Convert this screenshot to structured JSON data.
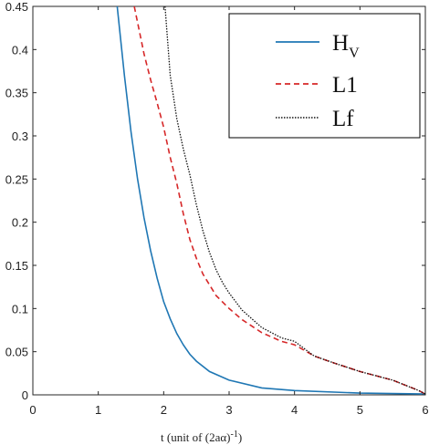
{
  "chart_data": {
    "type": "line",
    "title": "",
    "xlabel": "t (unit of (2aα)",
    "xlabel_sup": "-1",
    "xlabel_close": ")",
    "ylabel": "",
    "xlim": [
      0,
      6
    ],
    "ylim": [
      0,
      0.45
    ],
    "xticks": [
      "0",
      "1",
      "2",
      "3",
      "4",
      "5",
      "6"
    ],
    "yticks": [
      "0",
      "0.05",
      "0.1",
      "0.15",
      "0.2",
      "0.25",
      "0.3",
      "0.35",
      "0.4",
      "0.45"
    ],
    "grid": false,
    "legend_position": "top-right",
    "series": [
      {
        "name": "H",
        "name_sub": "V",
        "color": "#1f77b4",
        "style": "solid",
        "x": [
          1.29,
          1.4,
          1.5,
          1.6,
          1.7,
          1.8,
          1.9,
          2.0,
          2.1,
          2.2,
          2.3,
          2.4,
          2.5,
          2.7,
          3.0,
          3.5,
          4.0,
          5.0,
          6.0
        ],
        "y": [
          0.45,
          0.37,
          0.305,
          0.25,
          0.205,
          0.167,
          0.135,
          0.108,
          0.088,
          0.071,
          0.058,
          0.047,
          0.039,
          0.027,
          0.017,
          0.008,
          0.005,
          0.002,
          0.001
        ]
      },
      {
        "name": "L1",
        "color": "#d62728",
        "style": "dashed",
        "x": [
          1.55,
          1.7,
          1.8,
          1.9,
          2.0,
          2.1,
          2.2,
          2.3,
          2.4,
          2.5,
          2.6,
          2.8,
          3.0,
          3.2,
          3.5,
          3.8,
          4.0,
          4.3,
          4.6,
          5.0,
          5.5,
          5.9,
          6.0
        ],
        "y": [
          0.45,
          0.395,
          0.365,
          0.338,
          0.31,
          0.275,
          0.245,
          0.21,
          0.18,
          0.158,
          0.14,
          0.115,
          0.1,
          0.087,
          0.072,
          0.062,
          0.058,
          0.045,
          0.037,
          0.027,
          0.017,
          0.005,
          0.001
        ]
      },
      {
        "name": "Lf",
        "color": "#111111",
        "style": "dotted",
        "x": [
          2.02,
          2.1,
          2.2,
          2.3,
          2.4,
          2.5,
          2.6,
          2.7,
          2.8,
          2.9,
          3.0,
          3.2,
          3.5,
          3.8,
          4.0,
          4.3,
          4.6,
          5.0,
          5.5,
          5.9,
          6.0
        ],
        "y": [
          0.45,
          0.37,
          0.32,
          0.285,
          0.255,
          0.22,
          0.19,
          0.165,
          0.145,
          0.13,
          0.118,
          0.098,
          0.078,
          0.066,
          0.062,
          0.045,
          0.037,
          0.027,
          0.017,
          0.005,
          0.001
        ]
      }
    ]
  }
}
